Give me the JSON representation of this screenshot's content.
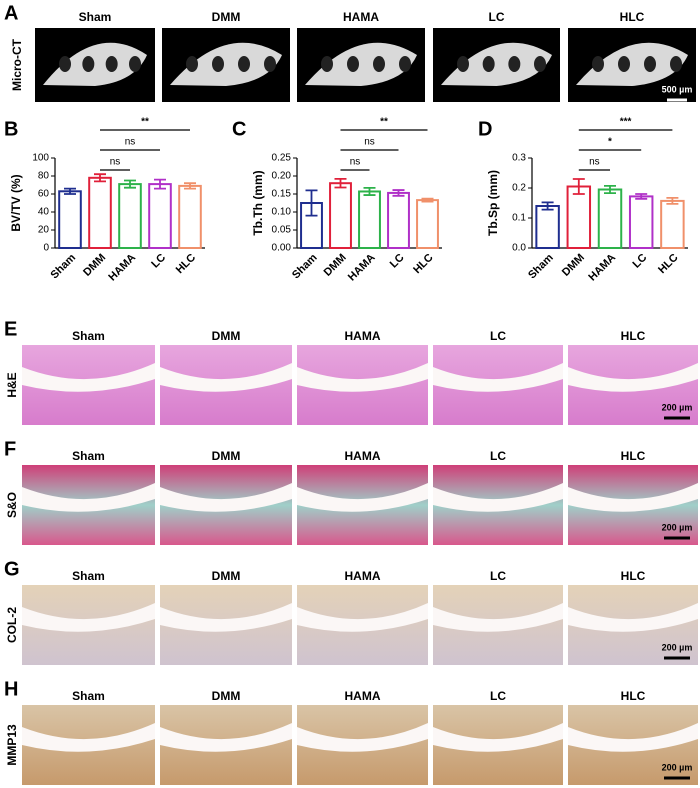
{
  "panel_letters": [
    "A",
    "B",
    "C",
    "D",
    "E",
    "F",
    "G",
    "H"
  ],
  "groups": [
    "Sham",
    "DMM",
    "HAMA",
    "LC",
    "HLC"
  ],
  "micro_ct": {
    "row_label": "Micro-CT",
    "scale_bar": "500 µm"
  },
  "histology": [
    {
      "row_label": "H&E",
      "scale_bar": "200 µm"
    },
    {
      "row_label": "S&O",
      "scale_bar": "200 µm"
    },
    {
      "row_label": "COL-2",
      "scale_bar": "200 µm"
    },
    {
      "row_label": "MMP13",
      "scale_bar": "200 µm"
    }
  ],
  "chart_data": [
    {
      "type": "bar",
      "y_label": "BV/TV (%)",
      "categories": [
        "Sham",
        "DMM",
        "HAMA",
        "LC",
        "HLC"
      ],
      "colors": [
        "#1f2e8f",
        "#e0203a",
        "#2db24a",
        "#b030c8",
        "#f0906a"
      ],
      "values": [
        63,
        78,
        71,
        71,
        69
      ],
      "errors": [
        3,
        4,
        4,
        5,
        3
      ],
      "ylim": [
        0,
        100
      ],
      "yticks": [
        0,
        20,
        40,
        60,
        80,
        100
      ],
      "annotations": [
        {
          "from": "DMM",
          "to": "HAMA",
          "label": "ns"
        },
        {
          "from": "DMM",
          "to": "LC",
          "label": "ns"
        },
        {
          "from": "DMM",
          "to": "HLC",
          "label": "**"
        }
      ]
    },
    {
      "type": "bar",
      "y_label": "Tb.Th (mm)",
      "categories": [
        "Sham",
        "DMM",
        "HAMA",
        "LC",
        "HLC"
      ],
      "colors": [
        "#1f2e8f",
        "#e0203a",
        "#2db24a",
        "#b030c8",
        "#f0906a"
      ],
      "values": [
        0.125,
        0.18,
        0.157,
        0.153,
        0.133
      ],
      "errors": [
        0.035,
        0.012,
        0.01,
        0.008,
        0.004
      ],
      "ylim": [
        0,
        0.25
      ],
      "yticks": [
        {
          "value": 0,
          "label": "0.00"
        },
        0.05,
        {
          "value": 0.1,
          "label": "0.10"
        },
        0.15,
        {
          "value": 0.2,
          "label": "0.20"
        },
        0.25
      ],
      "annotations": [
        {
          "from": "DMM",
          "to": "HAMA",
          "label": "ns"
        },
        {
          "from": "DMM",
          "to": "LC",
          "label": "ns"
        },
        {
          "from": "DMM",
          "to": "HLC",
          "label": "**"
        }
      ]
    },
    {
      "type": "bar",
      "y_label": "Tb.Sp (mm)",
      "categories": [
        "Sham",
        "DMM",
        "HAMA",
        "LC",
        "HLC"
      ],
      "colors": [
        "#1f2e8f",
        "#e0203a",
        "#2db24a",
        "#b030c8",
        "#f0906a"
      ],
      "values": [
        0.14,
        0.205,
        0.195,
        0.172,
        0.157
      ],
      "errors": [
        0.012,
        0.025,
        0.012,
        0.008,
        0.01
      ],
      "ylim": [
        0,
        0.3
      ],
      "yticks": [
        {
          "value": 0,
          "label": "0.0"
        },
        0.1,
        0.2,
        0.3
      ],
      "annotations": [
        {
          "from": "DMM",
          "to": "HAMA",
          "label": "ns"
        },
        {
          "from": "DMM",
          "to": "LC",
          "label": "*"
        },
        {
          "from": "DMM",
          "to": "HLC",
          "label": "***"
        }
      ]
    }
  ]
}
